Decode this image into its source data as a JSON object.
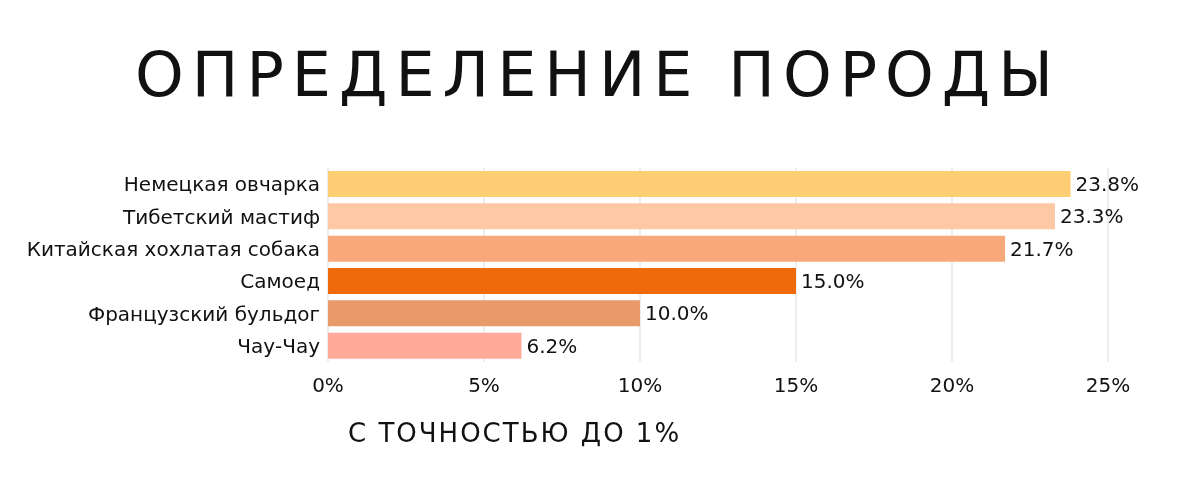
{
  "chart_data": {
    "type": "bar",
    "orientation": "horizontal",
    "title": "ОПРЕДЕЛЕНИЕ ПОРОДЫ",
    "xlabel": "С ТОЧНОСТЬЮ ДО 1%",
    "categories": [
      "Немецкая овчарка",
      "Тибетский мастиф",
      "Китайская хохлатая собака",
      "Самоед",
      "Французский бульдог",
      "Чау-Чау"
    ],
    "values": [
      23.8,
      23.3,
      21.7,
      15.0,
      10.0,
      6.2
    ],
    "colors": [
      "#fece74",
      "#fdc8a4",
      "#f7a97a",
      "#ef6a0a",
      "#e99a6a",
      "#fea99a"
    ],
    "value_labels": [
      "23.8%",
      "23.3%",
      "21.7%",
      "15.0%",
      "10.0%",
      "6.2%"
    ],
    "xlim": [
      0,
      25
    ],
    "xticks": [
      {
        "value": 0,
        "label": "0%"
      },
      {
        "value": 5,
        "label": "5%"
      },
      {
        "value": 10,
        "label": "10%"
      },
      {
        "value": 15,
        "label": "15%"
      },
      {
        "value": 20,
        "label": "20%"
      },
      {
        "value": 25,
        "label": "25%"
      }
    ],
    "grid": "x"
  }
}
